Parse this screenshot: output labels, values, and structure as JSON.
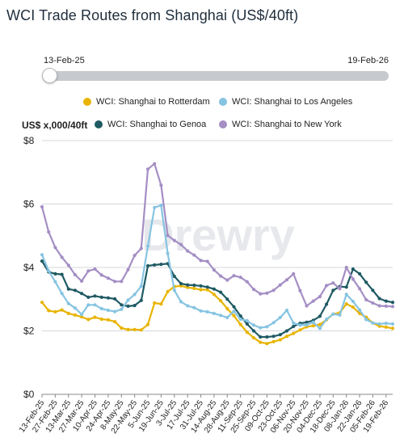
{
  "title": "WCI Trade Routes from Shanghai (US$/40ft)",
  "range": {
    "start": "13-Feb-25",
    "end": "19-Feb-26"
  },
  "watermark": "Drewry",
  "chart_data": {
    "type": "line",
    "ylabel": "US$ x,000/40ft",
    "ylim": [
      0,
      8
    ],
    "yticks": [
      "$0",
      "$2",
      "$4",
      "$6",
      "$8"
    ],
    "grid": true,
    "legend_position": "top",
    "x": [
      "13-Feb-25",
      "20-Feb-25",
      "27-Feb-25",
      "06-Mar-25",
      "13-Mar-25",
      "20-Mar-25",
      "27-Mar-25",
      "03-Apr-25",
      "10-Apr-25",
      "17-Apr-25",
      "24-Apr-25",
      "01-May-25",
      "08-May-25",
      "15-May-25",
      "22-May-25",
      "29-May-25",
      "05-Jun-25",
      "12-Jun-25",
      "19-Jun-25",
      "26-Jun-25",
      "03-Jul-25",
      "10-Jul-25",
      "17-Jul-25",
      "24-Jul-25",
      "31-Jul-25",
      "07-Aug-25",
      "14-Aug-25",
      "21-Aug-25",
      "28-Aug-25",
      "04-Sep-25",
      "11-Sep-25",
      "18-Sep-25",
      "25-Sep-25",
      "02-Oct-25",
      "09-Oct-25",
      "16-Oct-25",
      "23-Oct-25",
      "30-Oct-25",
      "06-Nov-25",
      "13-Nov-25",
      "20-Nov-25",
      "27-Nov-25",
      "04-Dec-25",
      "11-Dec-25",
      "18-Dec-25",
      "25-Dec-25",
      "01-Jan-26",
      "08-Jan-26",
      "15-Jan-26",
      "22-Jan-26",
      "29-Jan-26",
      "05-Feb-26",
      "12-Feb-26",
      "19-Feb-26"
    ],
    "xtick_labels": [
      "13-Feb-25",
      "27-Feb-25",
      "13-Mar-25",
      "27-Mar-25",
      "10-Apr-25",
      "24-Apr-25",
      "8-May-25",
      "22-May-25",
      "5-Jun-25",
      "19-Jun-25",
      "3-Jul-25",
      "17-Jul-25",
      "31-Jul-25",
      "14-Aug-25",
      "28-Aug-25",
      "11-Sep-25",
      "25-Sep-25",
      "09-Oct-25",
      "23-Oct-25",
      "06-Nov-25",
      "20-Nov-25",
      "04-Dec-25",
      "18-Dec-25",
      "08-Jan-26",
      "22-Jan-26",
      "05-Feb-26",
      "19-Feb-26"
    ],
    "series": [
      {
        "name": "WCI: Shanghai to Rotterdam",
        "color": "#e8b400",
        "values": [
          2.9,
          2.64,
          2.6,
          2.66,
          2.55,
          2.5,
          2.44,
          2.36,
          2.43,
          2.37,
          2.35,
          2.29,
          2.09,
          2.04,
          2.04,
          2.03,
          2.2,
          2.88,
          2.85,
          3.24,
          3.4,
          3.42,
          3.37,
          3.34,
          3.3,
          3.3,
          3.15,
          2.95,
          2.7,
          2.48,
          2.2,
          1.96,
          1.78,
          1.64,
          1.6,
          1.66,
          1.72,
          1.83,
          1.92,
          2.03,
          2.13,
          2.16,
          2.2,
          2.35,
          2.53,
          2.57,
          2.85,
          2.75,
          2.55,
          2.43,
          2.25,
          2.15,
          2.12,
          2.08
        ]
      },
      {
        "name": "WCI: Shanghai to Genoa",
        "color": "#1f5a63",
        "values": [
          4.2,
          3.86,
          3.8,
          3.78,
          3.32,
          3.28,
          3.18,
          3.06,
          3.1,
          3.06,
          3.04,
          3.01,
          2.82,
          2.78,
          2.8,
          2.96,
          4.05,
          4.08,
          4.1,
          4.12,
          3.72,
          3.49,
          3.45,
          3.44,
          3.42,
          3.38,
          3.32,
          3.22,
          3.0,
          2.76,
          2.47,
          2.22,
          2.0,
          1.81,
          1.81,
          1.83,
          1.88,
          2.0,
          2.14,
          2.24,
          2.27,
          2.33,
          2.46,
          2.84,
          3.28,
          3.4,
          3.38,
          3.95,
          3.8,
          3.53,
          3.28,
          3.02,
          2.94,
          2.9
        ]
      },
      {
        "name": "WCI: Shanghai to Los Angeles",
        "color": "#86c4e2",
        "values": [
          4.4,
          3.89,
          3.55,
          3.18,
          2.86,
          2.72,
          2.52,
          2.82,
          2.82,
          2.7,
          2.65,
          2.61,
          2.68,
          2.97,
          3.15,
          3.41,
          4.67,
          5.89,
          5.96,
          4.44,
          3.28,
          2.92,
          2.79,
          2.73,
          2.63,
          2.6,
          2.55,
          2.49,
          2.42,
          2.62,
          2.37,
          2.32,
          2.18,
          2.1,
          2.13,
          2.26,
          2.42,
          2.65,
          2.25,
          2.18,
          2.19,
          2.27,
          2.08,
          2.37,
          2.53,
          2.5,
          3.15,
          2.93,
          2.66,
          2.36,
          2.25,
          2.22,
          2.24,
          2.22
        ]
      },
      {
        "name": "WCI: Shanghai to New York",
        "color": "#a48ec4",
        "values": [
          5.91,
          5.12,
          4.63,
          4.32,
          4.07,
          3.77,
          3.57,
          3.89,
          3.95,
          3.76,
          3.66,
          3.56,
          3.56,
          3.93,
          4.38,
          4.6,
          7.1,
          7.27,
          6.59,
          5.01,
          4.85,
          4.72,
          4.52,
          4.39,
          4.22,
          4.19,
          3.92,
          3.73,
          3.6,
          3.74,
          3.69,
          3.55,
          3.31,
          3.17,
          3.19,
          3.28,
          3.45,
          3.61,
          3.8,
          3.27,
          2.79,
          2.94,
          3.08,
          3.43,
          3.51,
          3.33,
          4.0,
          3.63,
          3.33,
          2.98,
          2.88,
          2.79,
          2.78,
          2.77
        ]
      }
    ]
  }
}
